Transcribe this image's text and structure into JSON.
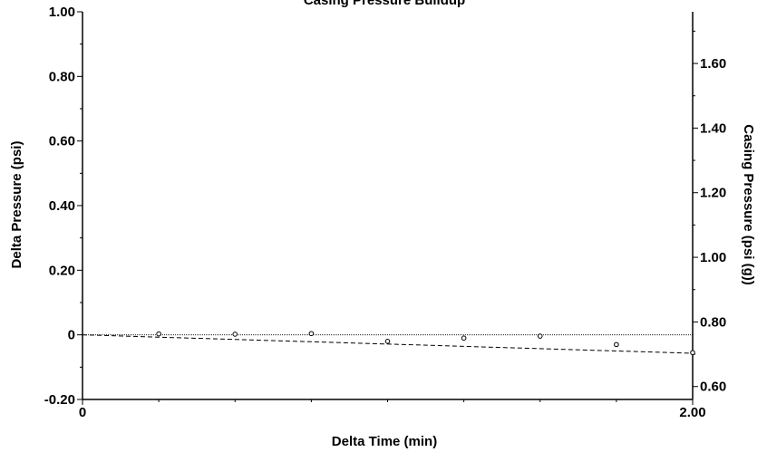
{
  "chart_data": {
    "type": "scatter",
    "title": "Casing Pressure Buildup",
    "xlabel": "Delta Time (min)",
    "ylabel_left": "Delta Pressure (psi)",
    "ylabel_right": "Casing Pressure (psi (g))",
    "xlim": [
      0,
      2.0
    ],
    "ylim_left": [
      -0.2,
      1.0
    ],
    "ylim_right": [
      0.56,
      1.76
    ],
    "x_tick_labels": [
      {
        "value": 0,
        "label": "0"
      },
      {
        "value": 2.0,
        "label": "2.00"
      }
    ],
    "x_minor_ticks": [
      0.25,
      0.5,
      0.75,
      1.0,
      1.25,
      1.5,
      1.75
    ],
    "y_left_tick_labels": [
      {
        "value": -0.2,
        "label": "-0.20"
      },
      {
        "value": 0,
        "label": "0"
      },
      {
        "value": 0.2,
        "label": "0.20"
      },
      {
        "value": 0.4,
        "label": "0.40"
      },
      {
        "value": 0.6,
        "label": "0.60"
      },
      {
        "value": 0.8,
        "label": "0.80"
      },
      {
        "value": 1.0,
        "label": "1.00"
      }
    ],
    "y_right_tick_labels": [
      {
        "value": 0.6,
        "label": "0.60"
      },
      {
        "value": 0.8,
        "label": "0.80"
      },
      {
        "value": 1.0,
        "label": "1.00"
      },
      {
        "value": 1.2,
        "label": "1.20"
      },
      {
        "value": 1.4,
        "label": "1.40"
      },
      {
        "value": 1.6,
        "label": "1.60"
      }
    ],
    "series": [
      {
        "marker": "open-circle",
        "x": [
          0.25,
          0.5,
          0.75,
          1.0,
          1.25,
          1.5,
          1.75,
          2.0
        ],
        "y": [
          0.003,
          0.002,
          0.004,
          -0.02,
          -0.01,
          -0.004,
          -0.03,
          -0.055
        ]
      }
    ],
    "reference_line": {
      "y": 0,
      "style": "dotted"
    },
    "trend_line": {
      "style": "dashed",
      "from": [
        0,
        0
      ],
      "to": [
        2.0,
        -0.057
      ]
    },
    "grid": false,
    "legend": "none"
  }
}
